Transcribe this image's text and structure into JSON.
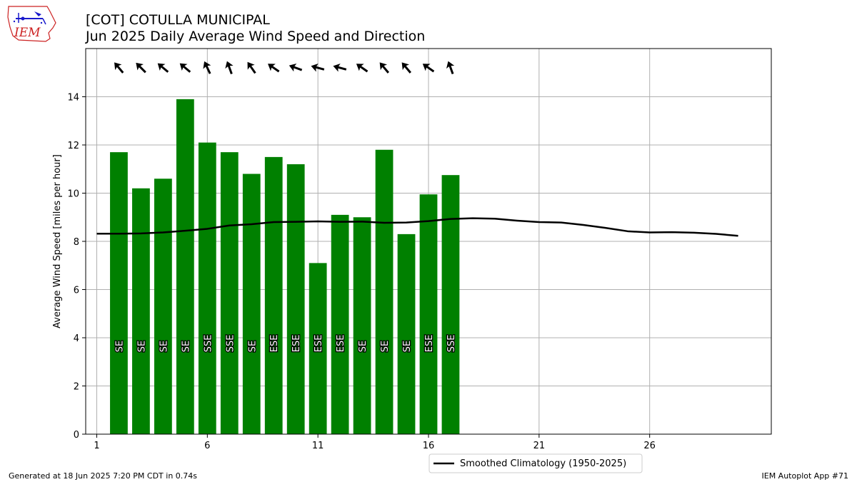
{
  "header": {
    "title_line1": "[COT] COTULLA MUNICIPAL",
    "title_line2": "Jun 2025 Daily Average Wind Speed and Direction"
  },
  "logo": {
    "text": "IEM",
    "icon": "iem-logo"
  },
  "footer": {
    "generated": "Generated at 18 Jun 2025 7:20 PM CDT in 0.74s",
    "app": "IEM Autoplot App #71"
  },
  "colors": {
    "bar": "#008000",
    "climatology": "#000000",
    "arrow": "#000000",
    "grid": "#b0b0b0",
    "logo_red": "#cc2222",
    "logo_blue": "#1a1acc"
  },
  "chart_data": {
    "type": "bar",
    "ylabel": "Average Wind Speed [miles per hour]",
    "xlabel": "",
    "xlim": [
      0.5,
      31.5
    ],
    "ylim": [
      0,
      16
    ],
    "xticks": [
      1,
      6,
      11,
      16,
      21,
      26
    ],
    "yticks": [
      0,
      2,
      4,
      6,
      8,
      10,
      12,
      14
    ],
    "grid": true,
    "legend_position": "below-center",
    "bars": {
      "days": [
        2,
        3,
        4,
        5,
        6,
        7,
        8,
        9,
        10,
        11,
        12,
        13,
        14,
        15,
        16,
        17
      ],
      "values": [
        11.7,
        10.2,
        10.6,
        13.9,
        12.1,
        11.7,
        10.8,
        11.5,
        11.2,
        7.1,
        9.1,
        9.0,
        11.8,
        8.3,
        9.95,
        10.75
      ],
      "directions": [
        "SE",
        "SE",
        "SE",
        "SE",
        "SSE",
        "SSE",
        "SE",
        "ESE",
        "ESE",
        "ESE",
        "ESE",
        "SE",
        "SE",
        "SE",
        "ESE",
        "SSE"
      ],
      "arrow_bearing_deg": [
        140,
        135,
        130,
        130,
        155,
        160,
        145,
        125,
        110,
        105,
        105,
        125,
        140,
        140,
        125,
        160
      ]
    },
    "series": [
      {
        "name": "Smoothed Climatology (1950-2025)",
        "x": [
          1,
          2,
          3,
          4,
          5,
          6,
          7,
          8,
          9,
          10,
          11,
          12,
          13,
          14,
          15,
          16,
          17,
          18,
          19,
          20,
          21,
          22,
          23,
          24,
          25,
          26,
          27,
          28,
          29,
          30
        ],
        "values": [
          8.32,
          8.32,
          8.33,
          8.37,
          8.44,
          8.52,
          8.66,
          8.71,
          8.8,
          8.81,
          8.83,
          8.81,
          8.82,
          8.77,
          8.78,
          8.84,
          8.93,
          8.96,
          8.94,
          8.86,
          8.8,
          8.78,
          8.68,
          8.56,
          8.42,
          8.37,
          8.38,
          8.36,
          8.31,
          8.23
        ]
      }
    ]
  }
}
